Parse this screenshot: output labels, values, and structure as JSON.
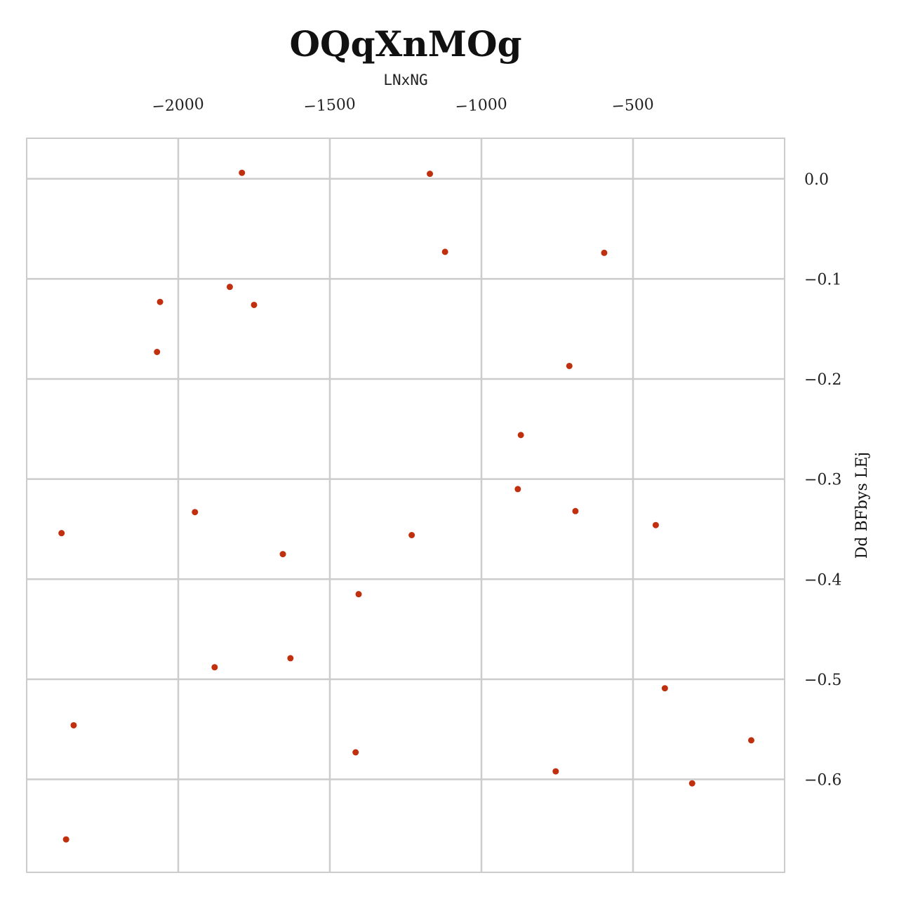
{
  "chart_data": {
    "type": "scatter",
    "title": "OQqXnMOg",
    "xlabel": "LNxNG",
    "ylabel": "Dd BFbys LEj",
    "x_axis_position": "top",
    "y_axis_position": "right",
    "xlim": [
      -2500,
      0
    ],
    "ylim": [
      -0.6929,
      0.0405
    ],
    "xticks": [
      -2000,
      -1500,
      -1000,
      -500
    ],
    "xtick_labels": [
      "−2000",
      "−1500",
      "−1000",
      "−500"
    ],
    "yticks": [
      0.0,
      -0.1,
      -0.2,
      -0.3,
      -0.4,
      -0.5,
      -0.6
    ],
    "ytick_labels": [
      "0.0",
      "−0.1",
      "−0.2",
      "−0.3",
      "−0.4",
      "−0.5",
      "−0.6"
    ],
    "grid": true,
    "marker_color": "#c0300f",
    "series": [
      {
        "points": [
          [
            -1790,
            0.006
          ],
          [
            -1170,
            0.005
          ],
          [
            -1120,
            -0.073
          ],
          [
            -595,
            -0.074
          ],
          [
            -1830,
            -0.108
          ],
          [
            -2060,
            -0.123
          ],
          [
            -1750,
            -0.126
          ],
          [
            -2070,
            -0.173
          ],
          [
            -710,
            -0.187
          ],
          [
            -870,
            -0.256
          ],
          [
            -880,
            -0.31
          ],
          [
            -1945,
            -0.333
          ],
          [
            -690,
            -0.332
          ],
          [
            -2385,
            -0.354
          ],
          [
            -1230,
            -0.356
          ],
          [
            -1655,
            -0.375
          ],
          [
            -425,
            -0.346
          ],
          [
            -1405,
            -0.415
          ],
          [
            -1880,
            -0.488
          ],
          [
            -1630,
            -0.479
          ],
          [
            -395,
            -0.509
          ],
          [
            -2345,
            -0.546
          ],
          [
            -1415,
            -0.573
          ],
          [
            -110,
            -0.561
          ],
          [
            -755,
            -0.592
          ],
          [
            -305,
            -0.604
          ],
          [
            -2370,
            -0.66
          ]
        ]
      }
    ]
  }
}
